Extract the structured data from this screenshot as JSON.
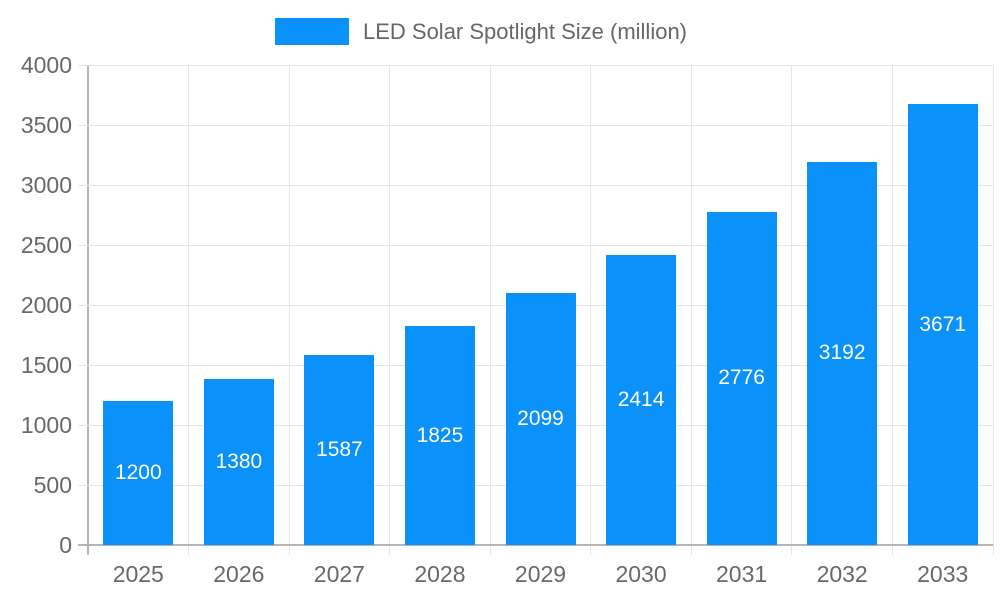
{
  "chart_data": {
    "type": "bar",
    "title": "",
    "legend_label": "LED Solar Spotlight Size (million)",
    "legend_position": "top",
    "categories": [
      "2025",
      "2026",
      "2027",
      "2028",
      "2029",
      "2030",
      "2031",
      "2032",
      "2033"
    ],
    "values": [
      1200,
      1380,
      1587,
      1825,
      2099,
      2414,
      2776,
      3192,
      3671
    ],
    "y_ticks": [
      0,
      500,
      1000,
      1500,
      2000,
      2500,
      3000,
      3500,
      4000
    ],
    "ylim": [
      0,
      4000
    ],
    "grid": true,
    "bar_label_position": "center-inside",
    "colors": {
      "bar": "#0a91fa",
      "bar_label": "#ffffff",
      "axis_line": "#b5b5b5",
      "gridline": "#e6e6e6",
      "tick_text": "#686868",
      "legend_text": "#666666"
    }
  }
}
